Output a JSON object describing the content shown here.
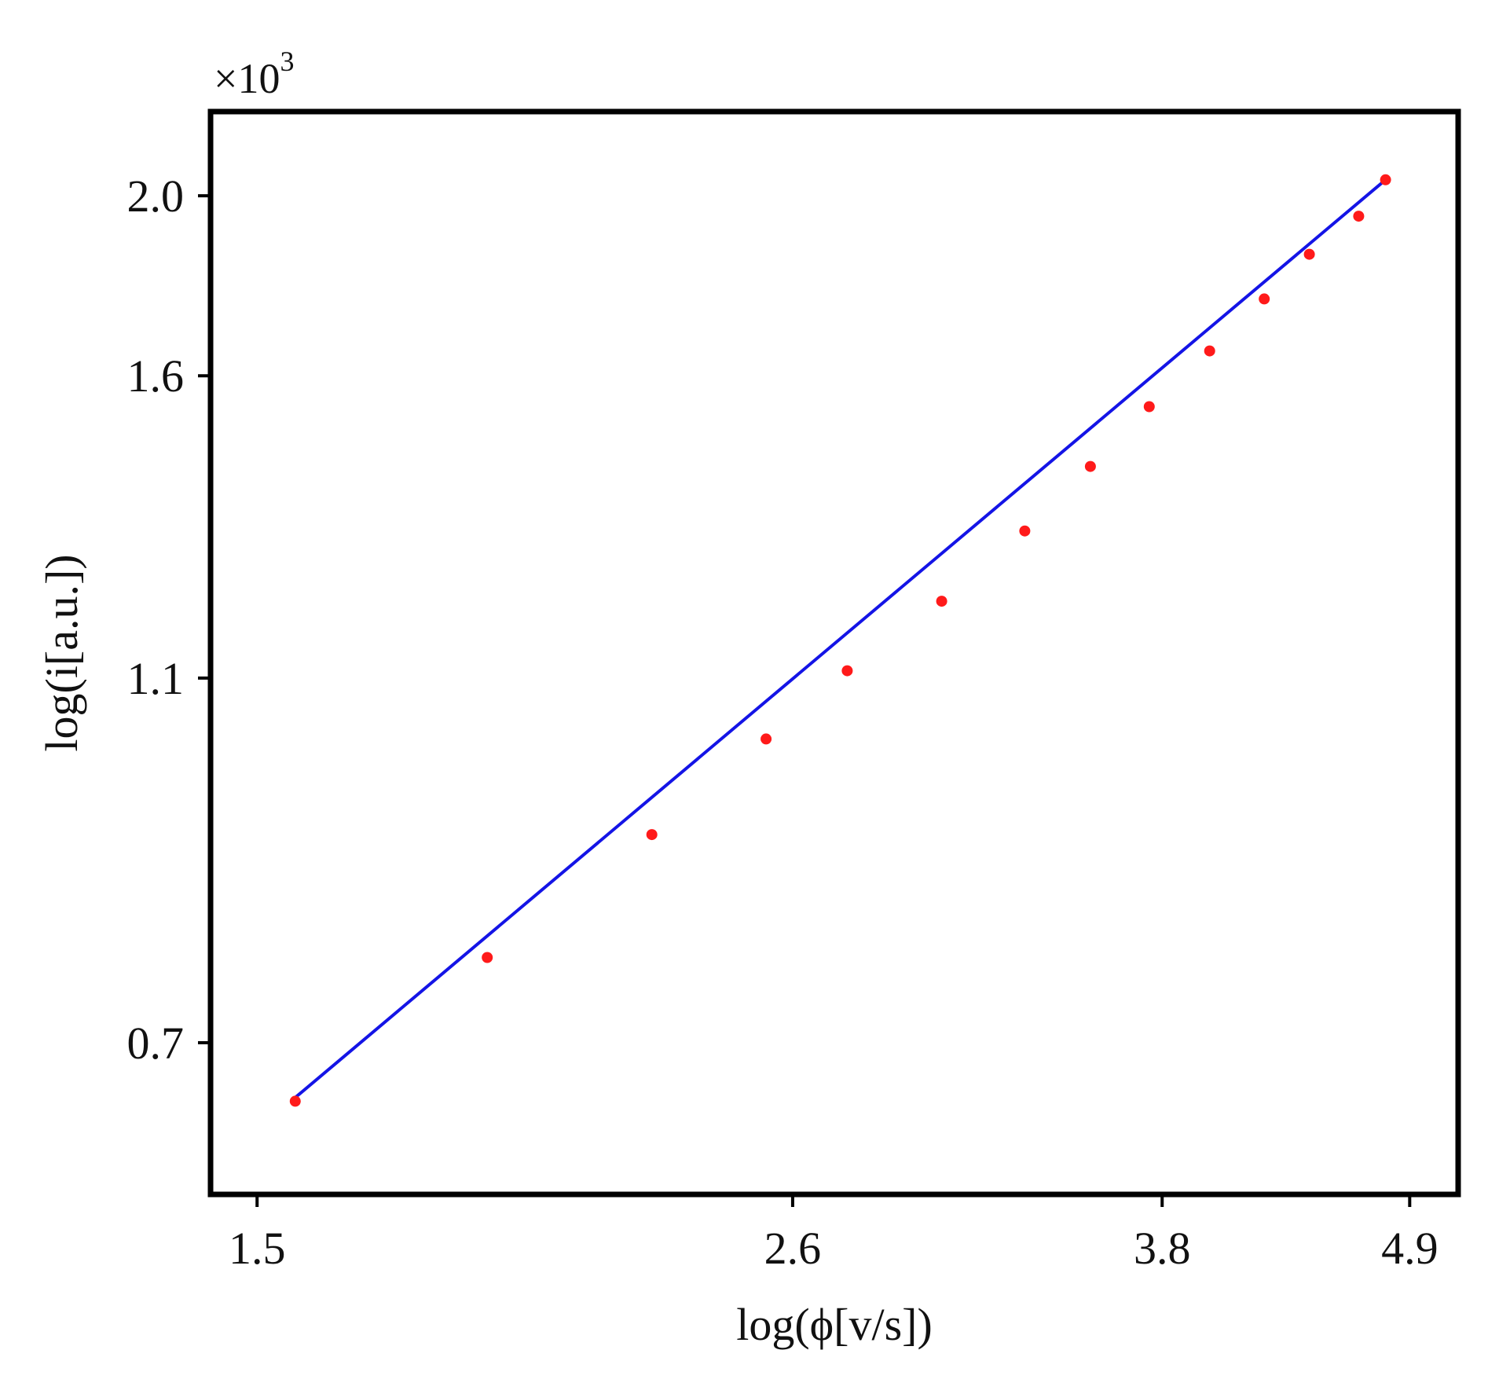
{
  "chart_data": {
    "type": "scatter",
    "title": "",
    "xlabel": "log(ϕ[v/s])",
    "ylabel": "log(i[a.u.])",
    "y_multiplier": {
      "base": "×10",
      "exponent": "3"
    },
    "x_scale": "log",
    "y_scale": "log",
    "xlim": [
      1.43,
      5.15
    ],
    "ylim": [
      0.58,
      2.22
    ],
    "x_ticks": [
      1.5,
      2.6,
      3.8,
      4.9
    ],
    "x_tick_labels": [
      "1.5",
      "2.6",
      "3.8",
      "4.9"
    ],
    "y_ticks": [
      0.7,
      1.1,
      1.6,
      2.0
    ],
    "y_tick_labels": [
      "0.7",
      "1.1",
      "1.6",
      "2.0"
    ],
    "grid": false,
    "legend": "none",
    "series": [
      {
        "kind": "points",
        "color": "#ff1a1a",
        "x": [
          1.56,
          1.9,
          2.25,
          2.53,
          2.75,
          3.03,
          3.3,
          3.53,
          3.75,
          3.99,
          4.22,
          4.42,
          4.65,
          4.78
        ],
        "y": [
          0.651,
          0.778,
          0.906,
          1.02,
          1.11,
          1.21,
          1.32,
          1.43,
          1.54,
          1.65,
          1.76,
          1.86,
          1.95,
          2.04
        ]
      },
      {
        "kind": "fit-line",
        "color": "#1414e6",
        "x": [
          1.56,
          4.78
        ],
        "y": [
          0.654,
          2.04
        ]
      }
    ]
  }
}
